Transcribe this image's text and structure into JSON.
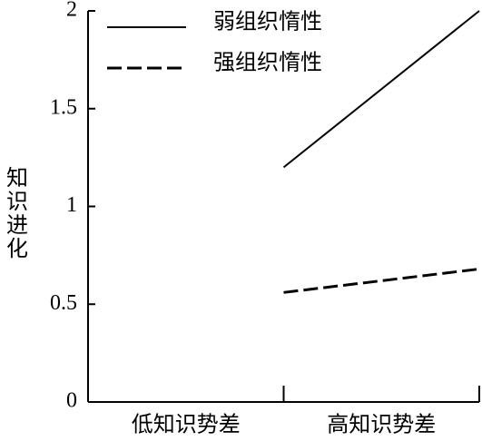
{
  "chart_data": {
    "type": "line",
    "y_label": "知识进化",
    "categories": [
      "低知识势差",
      "高知识势差"
    ],
    "series": [
      {
        "name": "弱组织惰性",
        "color": "#000000",
        "dash": false,
        "values": [
          1.2,
          2.0
        ]
      },
      {
        "name": "强组织惰性",
        "color": "#000000",
        "dash": true,
        "values": [
          0.56,
          0.68
        ]
      }
    ],
    "ylim": [
      0,
      2
    ],
    "yticks": [
      0,
      0.5,
      1,
      1.5,
      2
    ]
  }
}
